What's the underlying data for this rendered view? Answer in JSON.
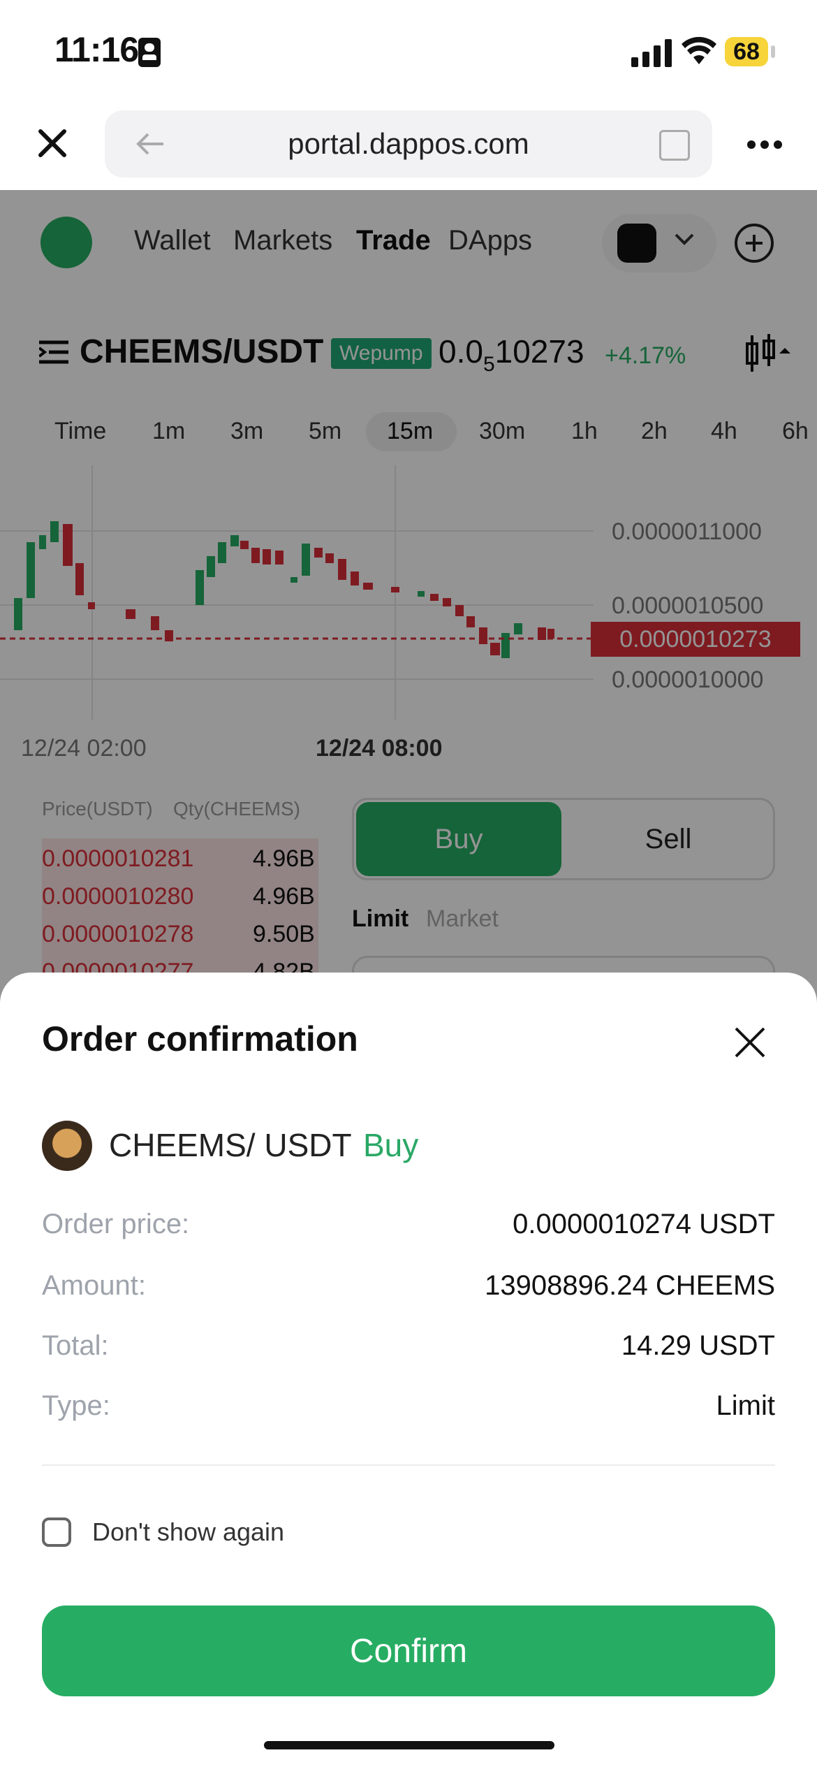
{
  "status_bar": {
    "time": "11:16",
    "battery": "68"
  },
  "browser": {
    "url": "portal.dappos.com"
  },
  "nav": {
    "items": [
      "Wallet",
      "Markets",
      "Trade",
      "DApps"
    ]
  },
  "pair_header": {
    "pair": "CHEEMS/USDT",
    "badge": "Wepump",
    "price_main": "0.0",
    "price_sub": "5",
    "price_rest": "10273",
    "change": "+4.17%"
  },
  "timeframes": [
    "Time",
    "1m",
    "3m",
    "5m",
    "15m",
    "30m",
    "1h",
    "2h",
    "4h",
    "6h"
  ],
  "chart": {
    "y_ticks": [
      "0.0000011000",
      "0.0000010500",
      "0.0000010000"
    ],
    "current_price": "0.0000010273",
    "x_ticks": [
      "12/24 02:00",
      "12/24 08:00"
    ]
  },
  "orderbook": {
    "headers": [
      "Price(USDT)",
      "Qty(CHEEMS)"
    ],
    "rows": [
      {
        "price": "0.0000010281",
        "qty": "4.96B"
      },
      {
        "price": "0.0000010280",
        "qty": "4.96B"
      },
      {
        "price": "0.0000010278",
        "qty": "9.50B"
      },
      {
        "price": "0.0000010277",
        "qty": "4.82B"
      }
    ]
  },
  "trade_panel": {
    "buy": "Buy",
    "sell": "Sell",
    "limit": "Limit",
    "market": "Market"
  },
  "sheet": {
    "title": "Order confirmation",
    "pair": "CHEEMS/ USDT",
    "side": "Buy",
    "rows": [
      {
        "label": "Order price:",
        "value": "0.0000010274 USDT"
      },
      {
        "label": "Amount:",
        "value": "13908896.24 CHEEMS"
      },
      {
        "label": "Total:",
        "value": "14.29 USDT"
      },
      {
        "label": "Type:",
        "value": "Limit"
      }
    ],
    "dont_show": "Don't show again",
    "confirm": "Confirm"
  },
  "colors": {
    "green": "#27ad63",
    "red": "#d9303a",
    "accent_badge": "#22a876"
  }
}
